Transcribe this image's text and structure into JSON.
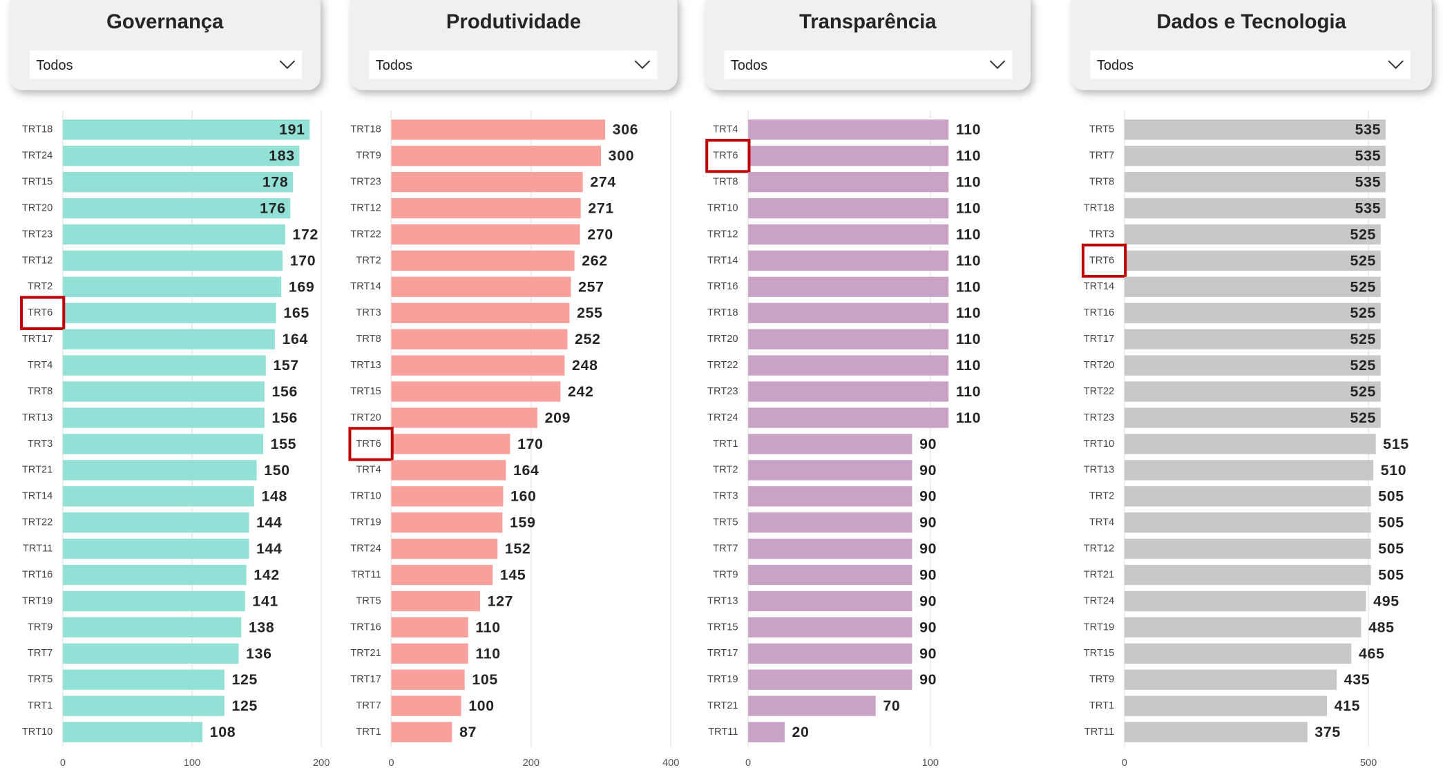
{
  "chart_data": [
    {
      "type": "bar",
      "title": "Governança",
      "filter": "Todos",
      "color": "#93e0d6",
      "highlight": "TRT6",
      "categories": [
        "TRT18",
        "TRT24",
        "TRT15",
        "TRT20",
        "TRT23",
        "TRT12",
        "TRT2",
        "TRT6",
        "TRT17",
        "TRT4",
        "TRT8",
        "TRT13",
        "TRT3",
        "TRT21",
        "TRT14",
        "TRT22",
        "TRT11",
        "TRT16",
        "TRT19",
        "TRT9",
        "TRT7",
        "TRT5",
        "TRT1",
        "TRT10"
      ],
      "values": [
        191,
        183,
        178,
        176,
        172,
        170,
        169,
        165,
        164,
        157,
        156,
        156,
        155,
        150,
        148,
        144,
        144,
        142,
        141,
        138,
        136,
        125,
        125,
        108
      ],
      "xlim": [
        0,
        200
      ],
      "xticks": [
        0,
        100,
        200
      ],
      "grid": true
    },
    {
      "type": "bar",
      "title": "Produtividade",
      "filter": "Todos",
      "color": "#f8a19c",
      "highlight": "TRT6",
      "categories": [
        "TRT18",
        "TRT9",
        "TRT23",
        "TRT12",
        "TRT22",
        "TRT2",
        "TRT14",
        "TRT3",
        "TRT8",
        "TRT13",
        "TRT15",
        "TRT20",
        "TRT6",
        "TRT4",
        "TRT10",
        "TRT19",
        "TRT24",
        "TRT11",
        "TRT5",
        "TRT16",
        "TRT21",
        "TRT17",
        "TRT7",
        "TRT1"
      ],
      "values": [
        306,
        300,
        274,
        271,
        270,
        262,
        257,
        255,
        252,
        248,
        242,
        209,
        170,
        164,
        160,
        159,
        152,
        145,
        127,
        110,
        110,
        105,
        100,
        87
      ],
      "xlim": [
        0,
        400
      ],
      "xticks": [
        0,
        200,
        400
      ],
      "grid": true
    },
    {
      "type": "bar",
      "title": "Transparência",
      "filter": "Todos",
      "color": "#c9a3c6",
      "highlight": "TRT6",
      "categories": [
        "TRT4",
        "TRT6",
        "TRT8",
        "TRT10",
        "TRT12",
        "TRT14",
        "TRT16",
        "TRT18",
        "TRT20",
        "TRT22",
        "TRT23",
        "TRT24",
        "TRT1",
        "TRT2",
        "TRT3",
        "TRT5",
        "TRT7",
        "TRT9",
        "TRT13",
        "TRT15",
        "TRT17",
        "TRT19",
        "TRT21",
        "TRT11"
      ],
      "values": [
        110,
        110,
        110,
        110,
        110,
        110,
        110,
        110,
        110,
        110,
        110,
        110,
        90,
        90,
        90,
        90,
        90,
        90,
        90,
        90,
        90,
        90,
        70,
        20
      ],
      "xlim": [
        0,
        150
      ],
      "xticks": [
        0,
        100
      ],
      "grid": true
    },
    {
      "type": "bar",
      "title": "Dados e Tecnologia",
      "filter": "Todos",
      "color": "#c8c8c8",
      "highlight": "TRT6",
      "categories": [
        "TRT5",
        "TRT7",
        "TRT8",
        "TRT18",
        "TRT3",
        "TRT6",
        "TRT14",
        "TRT16",
        "TRT17",
        "TRT20",
        "TRT22",
        "TRT23",
        "TRT10",
        "TRT13",
        "TRT2",
        "TRT4",
        "TRT12",
        "TRT21",
        "TRT24",
        "TRT19",
        "TRT15",
        "TRT9",
        "TRT1",
        "TRT11"
      ],
      "values": [
        535,
        535,
        535,
        535,
        525,
        525,
        525,
        525,
        525,
        525,
        525,
        525,
        515,
        510,
        505,
        505,
        505,
        505,
        495,
        485,
        465,
        435,
        415,
        375
      ],
      "xlim": [
        0,
        590
      ],
      "xticks": [
        0,
        500
      ],
      "grid": true
    }
  ]
}
